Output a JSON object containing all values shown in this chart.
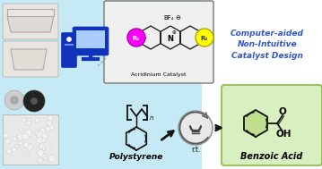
{
  "bg_color": "#c5eaf5",
  "right_bg": "#ffffff",
  "benzoic_bg": "#d8efc0",
  "acridinium_box_bg": "#f0f0f0",
  "title_text": "Computer-aided\nNon-Intuitive\nCatalyst Design",
  "title_color": "#3355cc",
  "polystyrene_label": "Polystyrene",
  "benzoic_label": "Benzoic Acid",
  "acridinium_label": "Acridinium Catalyst",
  "rt_label": "r.t.",
  "r1_color": "#ff00ff",
  "r2_color": "#ffff00",
  "r1_edge": "#aa00aa",
  "r2_edge": "#aaaa00",
  "arrow_color": "#111111",
  "computer_blue": "#1133bb",
  "bond_color": "#111111",
  "box_outline": "#777777",
  "light_circle_color": "#e8e8e8",
  "light_symbol_color": "#444444",
  "benzoic_ring_color": "#aad060",
  "dashed_color": "#999999",
  "photo_box_color": "#e0ddd8",
  "photo_box2_color": "#d8d8d4",
  "disc_outer": "#222222",
  "disc_inner": "#cccccc",
  "pellet_color": "#f0f0ee",
  "pellet_edge": "#cccccc",
  "foam_bg": "#e8e5e0"
}
